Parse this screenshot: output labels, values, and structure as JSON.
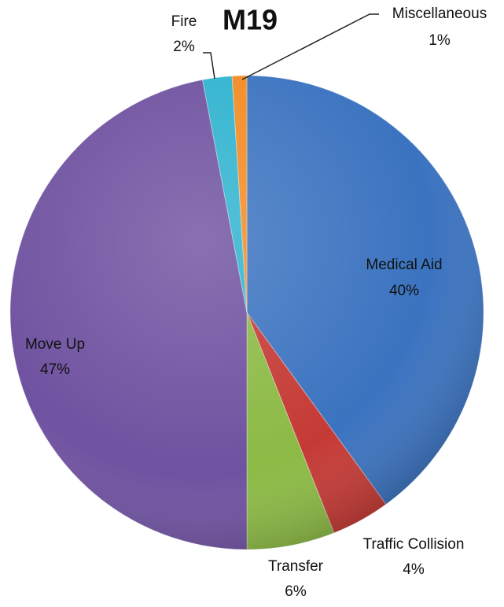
{
  "chart_data": {
    "type": "pie",
    "title": "M19",
    "categories": [
      "Medical Aid",
      "Traffic Collision",
      "Transfer",
      "Move Up",
      "Fire",
      "Miscellaneous"
    ],
    "values": [
      40,
      4,
      6,
      47,
      2,
      1
    ],
    "value_labels": [
      "40%",
      "4%",
      "6%",
      "47%",
      "2%",
      "1%"
    ],
    "colors": [
      "#3b73c0",
      "#c53a35",
      "#8cba45",
      "#6f52a0",
      "#2fb3cf",
      "#f28b24"
    ]
  }
}
